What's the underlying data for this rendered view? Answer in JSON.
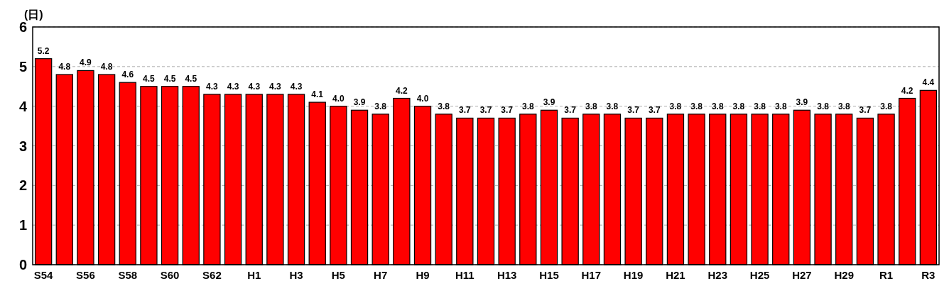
{
  "chart_data": {
    "type": "bar",
    "ylabel": "(日)",
    "categories": [
      "S54",
      null,
      "S56",
      null,
      "S58",
      null,
      "S60",
      null,
      "S62",
      null,
      "H1",
      null,
      "H3",
      null,
      "H5",
      null,
      "H7",
      null,
      "H9",
      null,
      "H11",
      null,
      "H13",
      null,
      "H15",
      null,
      "H17",
      null,
      "H19",
      null,
      "H21",
      null,
      "H23",
      null,
      "H25",
      null,
      "H27",
      null,
      "H29",
      null,
      "R1",
      null,
      "R3"
    ],
    "values": [
      5.2,
      4.8,
      4.9,
      4.8,
      4.6,
      4.5,
      4.5,
      4.5,
      4.3,
      4.3,
      4.3,
      4.3,
      4.3,
      4.1,
      4.0,
      3.9,
      3.8,
      4.2,
      4.0,
      3.8,
      3.7,
      3.7,
      3.7,
      3.8,
      3.9,
      3.7,
      3.8,
      3.8,
      3.7,
      3.7,
      3.8,
      3.8,
      3.8,
      3.8,
      3.8,
      3.8,
      3.9,
      3.8,
      3.8,
      3.7,
      3.8,
      4.2,
      4.4
    ],
    "value_labels": [
      "5.2",
      "4.8",
      "4.9",
      "4.8",
      "4.6",
      "4.5",
      "4.5",
      "4.5",
      "4.3",
      "4.3",
      "4.3",
      "4.3",
      "4.3",
      "4.1",
      "4.0",
      "3.9",
      "3.8",
      "4.2",
      "4.0",
      "3.8",
      "3.7",
      "3.7",
      "3.7",
      "3.8",
      "3.9",
      "3.7",
      "3.8",
      "3.8",
      "3.7",
      "3.7",
      "3.8",
      "3.8",
      "3.8",
      "3.8",
      "3.8",
      "3.8",
      "3.9",
      "3.8",
      "3.8",
      "3.7",
      "3.8",
      "4.2",
      "4.4"
    ],
    "color": "#ff0000",
    "ylim": [
      0,
      6
    ],
    "yticks": [
      0,
      1,
      2,
      3,
      4,
      5,
      6
    ],
    "grid": "y"
  }
}
